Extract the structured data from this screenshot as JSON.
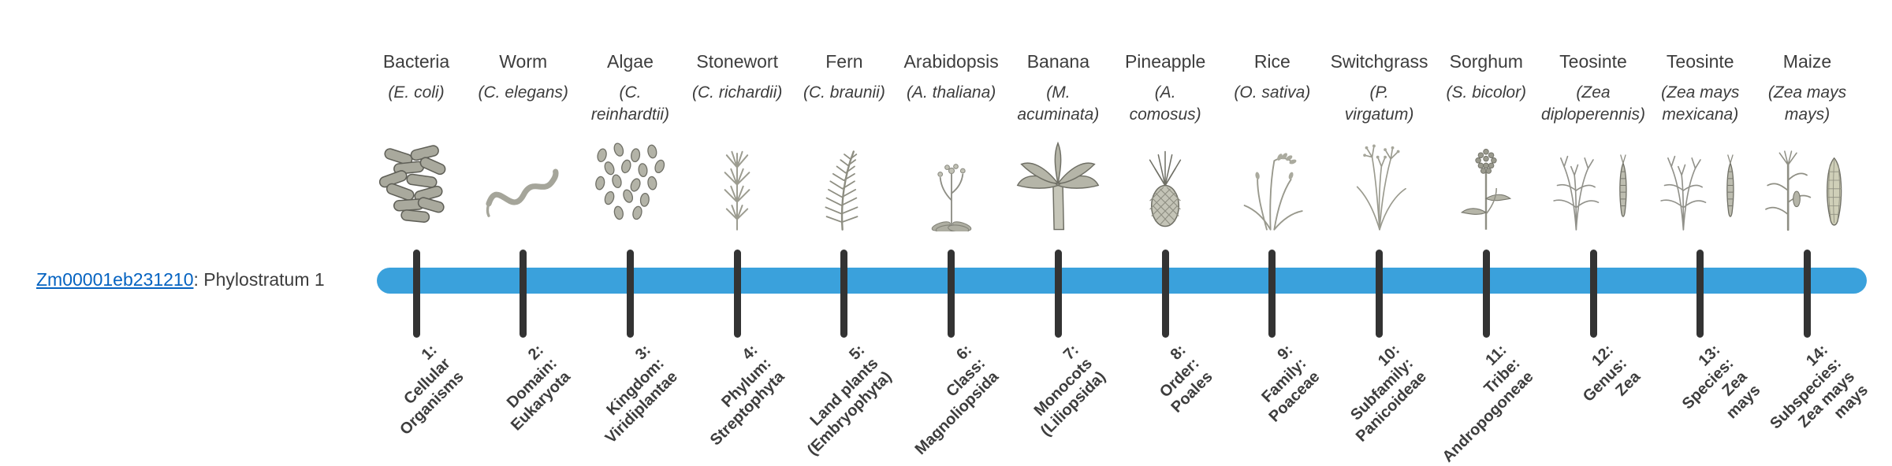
{
  "gene": {
    "id": "Zm00001eb231210",
    "suffix": ": Phylostratum 1"
  },
  "colors": {
    "link": "#0563c1",
    "text": "#3d3d3d"
  },
  "timeline": {
    "bar_color": "#3aa1dc",
    "tick_color": "#333333"
  },
  "organisms": [
    {
      "name": "Bacteria",
      "sci_lines": [
        "(E. coli)"
      ],
      "icon": "bacteria"
    },
    {
      "name": "Worm",
      "sci_lines": [
        "(C. elegans)"
      ],
      "icon": "worm"
    },
    {
      "name": "Algae",
      "sci_lines": [
        "(C.",
        "reinhardtii)"
      ],
      "icon": "algae"
    },
    {
      "name": "Stonewort",
      "sci_lines": [
        "(C. richardii)"
      ],
      "icon": "stonewort"
    },
    {
      "name": "Fern",
      "sci_lines": [
        "(C. braunii)"
      ],
      "icon": "fern"
    },
    {
      "name": "Arabidopsis",
      "sci_lines": [
        "(A. thaliana)"
      ],
      "icon": "arabidopsis"
    },
    {
      "name": "Banana",
      "sci_lines": [
        "(M.",
        "acuminata)"
      ],
      "icon": "banana"
    },
    {
      "name": "Pineapple",
      "sci_lines": [
        "(A.",
        "comosus)"
      ],
      "icon": "pineapple"
    },
    {
      "name": "Rice",
      "sci_lines": [
        "(O. sativa)"
      ],
      "icon": "rice"
    },
    {
      "name": "Switchgrass",
      "sci_lines": [
        "(P.",
        "virgatum)"
      ],
      "icon": "switchgrass"
    },
    {
      "name": "Sorghum",
      "sci_lines": [
        "(S. bicolor)"
      ],
      "icon": "sorghum"
    },
    {
      "name": "Teosinte",
      "sci_lines": [
        "(Zea",
        "diploperennis)"
      ],
      "icon": "teosinte"
    },
    {
      "name": "Teosinte",
      "sci_lines": [
        "(Zea mays",
        "mexicana)"
      ],
      "icon": "teosinte"
    },
    {
      "name": "Maize",
      "sci_lines": [
        "(Zea mays",
        "mays)"
      ],
      "icon": "maize"
    }
  ],
  "phylostrata": [
    {
      "lines": [
        "1:",
        "Cellular",
        "Organisms"
      ]
    },
    {
      "lines": [
        "2:",
        "Domain:",
        "Eukaryota"
      ]
    },
    {
      "lines": [
        "3:",
        "Kingdom:",
        "Viridiplantae"
      ]
    },
    {
      "lines": [
        "4:",
        "Phylum:",
        "Streptophyta"
      ]
    },
    {
      "lines": [
        "5:",
        "Land plants",
        "(Embryophyta)"
      ]
    },
    {
      "lines": [
        "6:",
        "Class:",
        "Magnoliopsida"
      ]
    },
    {
      "lines": [
        "7:",
        "Monocots",
        "(Liliopsida)"
      ]
    },
    {
      "lines": [
        "8:",
        "Order:",
        "Poales"
      ]
    },
    {
      "lines": [
        "9:",
        "Family:",
        "Poaceae"
      ]
    },
    {
      "lines": [
        "10:",
        "Subfamily:",
        "Panicoideae"
      ]
    },
    {
      "lines": [
        "11:",
        "Tribe:",
        "Andropogoneae"
      ]
    },
    {
      "lines": [
        "12:",
        "Genus:",
        "Zea"
      ]
    },
    {
      "lines": [
        "13:",
        "Species:",
        "Zea",
        "mays"
      ]
    },
    {
      "lines": [
        "14:",
        "Subspecies:",
        "Zea mays",
        "mays"
      ]
    }
  ]
}
